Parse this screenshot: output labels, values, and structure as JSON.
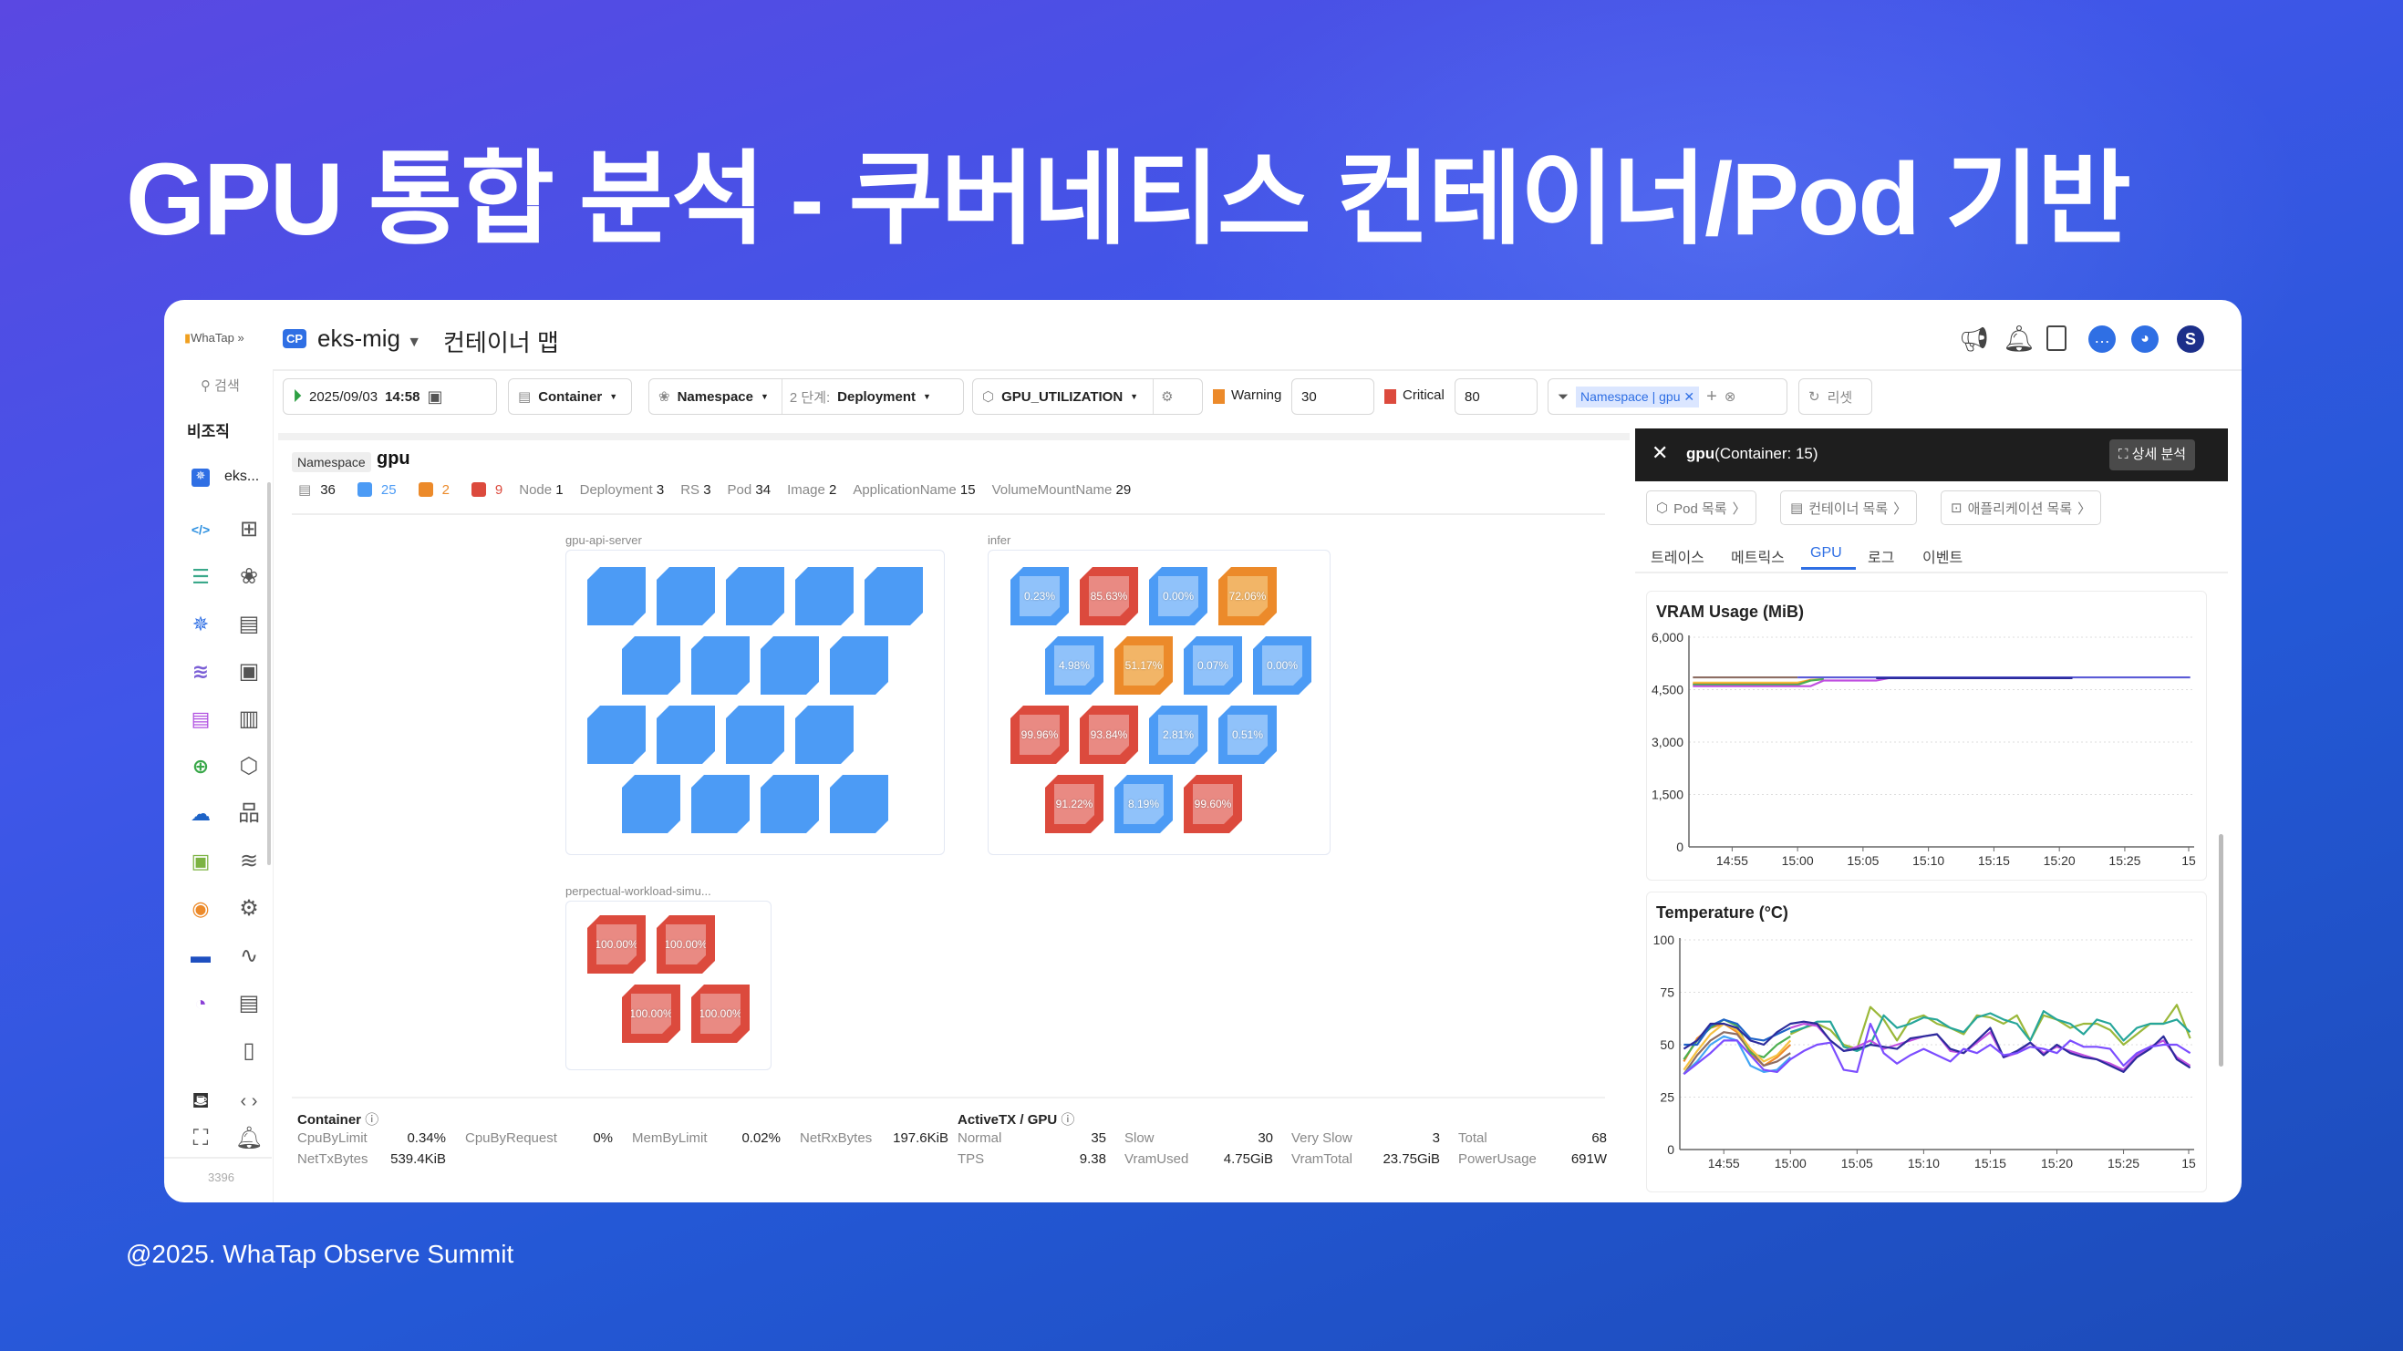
{
  "slide": {
    "title": "GPU 통합 분석 - 쿠버네티스 컨테이너/Pod 기반",
    "footer": "@2025. WhaTap Observe Summit"
  },
  "header": {
    "logo": "WhaTap",
    "project_badge": "CP",
    "project": "eks-mig",
    "page_title": "컨테이너 맵",
    "icons": [
      "megaphone-icon",
      "bell-icon",
      "info-panel-icon",
      "chat-icon",
      "bot-icon",
      "user-avatar-icon"
    ],
    "avatar_letter": "S"
  },
  "sidebar": {
    "search": "검색",
    "org": "비조직",
    "project": "eks...",
    "count": "3396",
    "icons_col1": [
      "code-icon",
      "server-icon",
      "kubernetes-icon",
      "database-icon",
      "log-icon",
      "network-icon",
      "cloud-icon",
      "browser-icon",
      "radio-icon",
      "chip-icon",
      "gauge-icon"
    ],
    "icons_col2": [
      "dashboard-icon",
      "cluster-icon",
      "list-icon",
      "gpu-icon",
      "memory-icon",
      "cube-icon",
      "topology-icon",
      "storage-icon",
      "settings-icon",
      "chart-icon",
      "logs-icon",
      "document-icon",
      "code-brackets-icon"
    ]
  },
  "toolbar": {
    "date": "2025/09/03",
    "time": "14:58",
    "object": "Container",
    "group1": "Namespace",
    "step_label": "2 단계:",
    "group2": "Deployment",
    "metric": "GPU_UTILIZATION",
    "warning_label": "Warning",
    "warning_value": "30",
    "critical_label": "Critical",
    "critical_value": "80",
    "filter_chip": "Namespace | gpu",
    "reset": "리셋"
  },
  "colors": {
    "normal": "#4c9bf5",
    "warning": "#ec8a2a",
    "critical": "#dc4a3d",
    "accent": "#2f6fe4"
  },
  "namespace": {
    "tag": "Namespace",
    "name": "gpu",
    "counts": {
      "containers": "36",
      "normal": "25",
      "warning": "2",
      "critical": "9"
    },
    "stats": [
      {
        "label": "Node",
        "value": "1"
      },
      {
        "label": "Deployment",
        "value": "3"
      },
      {
        "label": "RS",
        "value": "3"
      },
      {
        "label": "Pod",
        "value": "34"
      },
      {
        "label": "Image",
        "value": "2"
      },
      {
        "label": "ApplicationName",
        "value": "15"
      },
      {
        "label": "VolumeMountName",
        "value": "29"
      }
    ]
  },
  "groups": [
    {
      "name": "gpu-api-server",
      "rows": [
        [
          {
            "s": "normal"
          },
          {
            "s": "normal"
          },
          {
            "s": "normal"
          },
          {
            "s": "normal"
          },
          {
            "s": "normal"
          }
        ],
        [
          {
            "s": "normal"
          },
          {
            "s": "normal"
          },
          {
            "s": "normal"
          },
          {
            "s": "normal"
          }
        ],
        [
          {
            "s": "normal"
          },
          {
            "s": "normal"
          },
          {
            "s": "normal"
          },
          {
            "s": "normal"
          }
        ],
        [
          {
            "s": "normal"
          },
          {
            "s": "normal"
          },
          {
            "s": "normal"
          },
          {
            "s": "normal"
          }
        ]
      ]
    },
    {
      "name": "infer",
      "rows": [
        [
          {
            "s": "normal",
            "v": "0.23%"
          },
          {
            "s": "critical",
            "v": "85.63%"
          },
          {
            "s": "normal",
            "v": "0.00%"
          },
          {
            "s": "warning",
            "v": "72.06%"
          }
        ],
        [
          {
            "s": "normal",
            "v": "4.98%"
          },
          {
            "s": "warning",
            "v": "51.17%"
          },
          {
            "s": "normal",
            "v": "0.07%"
          },
          {
            "s": "normal",
            "v": "0.00%"
          }
        ],
        [
          {
            "s": "critical",
            "v": "99.96%"
          },
          {
            "s": "critical",
            "v": "93.84%"
          },
          {
            "s": "normal",
            "v": "2.81%"
          },
          {
            "s": "normal",
            "v": "0.51%"
          }
        ],
        [
          {
            "s": "critical",
            "v": "91.22%"
          },
          {
            "s": "normal",
            "v": "8.19%"
          },
          {
            "s": "critical",
            "v": "99.60%"
          }
        ]
      ]
    },
    {
      "name": "perpectual-workload-simu...",
      "rows": [
        [
          {
            "s": "critical",
            "v": "100.00%"
          },
          {
            "s": "critical",
            "v": "100.00%"
          }
        ],
        [
          {
            "s": "critical",
            "v": "100.00%"
          },
          {
            "s": "critical",
            "v": "100.00%"
          }
        ]
      ]
    }
  ],
  "summary": {
    "container_title": "Container",
    "gpu_title": "ActiveTX / GPU",
    "container_stats": [
      {
        "label": "CpuByLimit",
        "value": "0.34%"
      },
      {
        "label": "CpuByRequest",
        "value": "0%"
      },
      {
        "label": "MemByLimit",
        "value": "0.02%"
      },
      {
        "label": "NetRxBytes",
        "value": "197.6KiB"
      },
      {
        "label": "NetTxBytes",
        "value": "539.4KiB"
      }
    ],
    "gpu_stats": [
      {
        "label": "Normal",
        "value": "35"
      },
      {
        "label": "Slow",
        "value": "30"
      },
      {
        "label": "Very Slow",
        "value": "3"
      },
      {
        "label": "Total",
        "value": "68"
      },
      {
        "label": "TPS",
        "value": "9.38"
      },
      {
        "label": "VramUsed",
        "value": "4.75GiB"
      },
      {
        "label": "VramTotal",
        "value": "23.75GiB"
      },
      {
        "label": "PowerUsage",
        "value": "691W"
      }
    ]
  },
  "panel": {
    "title_bold": "gpu",
    "title_rest": "(Container: 15)",
    "detail_button": "상세 분석",
    "buttons": [
      "Pod 목록",
      "컨테이너 목록",
      "애플리케이션 목록"
    ],
    "tabs": [
      "트레이스",
      "메트릭스",
      "GPU",
      "로그",
      "이벤트"
    ],
    "active_tab": "GPU"
  },
  "chart_data": [
    {
      "type": "line",
      "title": "VRAM Usage (MiB)",
      "ylim": [
        0,
        6000
      ],
      "yticks": [
        "0",
        "1,500",
        "3,000",
        "4,500",
        "6,000"
      ],
      "xticks": [
        "14:55",
        "15:00",
        "15:05",
        "15:10",
        "15:15",
        "15:20",
        "15:25",
        "15"
      ],
      "grid": true,
      "series": [
        {
          "color": "#8d6e63",
          "x": [
            "14:52",
            "15:00"
          ],
          "y": [
            4850,
            4850
          ]
        },
        {
          "color": "#f5c242",
          "x": [
            "14:52",
            "15:00",
            "15:01",
            "15:02"
          ],
          "y": [
            4700,
            4700,
            4780,
            4800
          ]
        },
        {
          "color": "#f08a2a",
          "x": [
            "14:52",
            "15:00",
            "15:01"
          ],
          "y": [
            4660,
            4660,
            4780
          ]
        },
        {
          "color": "#4caf50",
          "x": [
            "14:52",
            "15:00",
            "15:01",
            "15:02"
          ],
          "y": [
            4640,
            4640,
            4760,
            4800
          ]
        },
        {
          "color": "#c04fe0",
          "x": [
            "14:52",
            "15:01",
            "15:02",
            "15:06",
            "15:07",
            "15:21"
          ],
          "y": [
            4600,
            4600,
            4760,
            4760,
            4830,
            4830
          ]
        },
        {
          "color": "#5b5bd6",
          "x": [
            "15:00",
            "15:30"
          ],
          "y": [
            4850,
            4850
          ]
        },
        {
          "color": "#2c2c9c",
          "x": [
            "15:06",
            "15:21"
          ],
          "y": [
            4830,
            4830
          ]
        }
      ]
    },
    {
      "type": "line",
      "title": "Temperature (°C)",
      "ylim": [
        0,
        100
      ],
      "yticks": [
        "0",
        "25",
        "50",
        "75",
        "100"
      ],
      "xticks": [
        "14:55",
        "15:00",
        "15:05",
        "15:10",
        "15:15",
        "15:20",
        "15:25",
        "15"
      ],
      "grid": true,
      "series": [
        {
          "color": "#f08a2a",
          "x": [
            "14:52",
            "14:53",
            "14:54",
            "14:55",
            "14:56",
            "14:57",
            "14:58",
            "14:59",
            "15:00"
          ],
          "y": [
            42,
            53,
            58,
            60,
            56,
            46,
            40,
            44,
            50
          ]
        },
        {
          "color": "#8d6e63",
          "x": [
            "14:52",
            "14:53",
            "14:54",
            "14:55",
            "14:56",
            "14:57",
            "14:58",
            "14:59",
            "15:00"
          ],
          "y": [
            36,
            45,
            52,
            56,
            55,
            47,
            40,
            42,
            46
          ]
        },
        {
          "color": "#4caf50",
          "x": [
            "14:52",
            "14:53",
            "14:54",
            "14:55",
            "14:56",
            "14:57",
            "14:58",
            "14:59",
            "15:00"
          ],
          "y": [
            43,
            52,
            58,
            62,
            59,
            46,
            44,
            50,
            54
          ]
        },
        {
          "color": "#f5c242",
          "x": [
            "14:52",
            "14:53",
            "14:54",
            "14:55",
            "14:56",
            "14:57",
            "14:58",
            "14:59",
            "15:00"
          ],
          "y": [
            38,
            47,
            55,
            60,
            57,
            48,
            42,
            45,
            52
          ]
        },
        {
          "color": "#42a5f5",
          "x": [
            "14:52",
            "14:53",
            "14:54",
            "14:55",
            "14:56",
            "14:57",
            "14:58",
            "14:59",
            "15:00"
          ],
          "y": [
            36,
            42,
            50,
            54,
            52,
            40,
            37,
            38,
            44
          ]
        },
        {
          "color": "#1e63c7",
          "x": [
            "14:52",
            "14:53",
            "14:54",
            "14:55",
            "14:56",
            "14:57",
            "14:58",
            "14:59",
            "15:00"
          ],
          "y": [
            50,
            50,
            59,
            62,
            60,
            53,
            52,
            55,
            58
          ]
        },
        {
          "color": "#9bb83a",
          "x": [
            "15:00",
            "15:01",
            "15:02",
            "15:03",
            "15:04",
            "15:05",
            "15:06",
            "15:07",
            "15:08",
            "15:09",
            "15:10",
            "15:11",
            "15:12",
            "15:13",
            "15:14",
            "15:15",
            "15:16",
            "15:17",
            "15:18",
            "15:19",
            "15:20",
            "15:21",
            "15:22",
            "15:23",
            "15:24",
            "15:25",
            "15:26",
            "15:27",
            "15:28",
            "15:29",
            "15:30"
          ],
          "y": [
            55,
            58,
            60,
            57,
            50,
            48,
            68,
            62,
            52,
            62,
            64,
            60,
            58,
            55,
            64,
            63,
            60,
            64,
            52,
            64,
            62,
            58,
            60,
            60,
            57,
            50,
            55,
            60,
            60,
            69,
            53
          ]
        },
        {
          "color": "#26a69a",
          "x": [
            "15:00",
            "15:01",
            "15:02",
            "15:03",
            "15:04",
            "15:05",
            "15:06",
            "15:07",
            "15:08",
            "15:09",
            "15:10",
            "15:11",
            "15:12",
            "15:13",
            "15:14",
            "15:15",
            "15:16",
            "15:17",
            "15:18",
            "15:19",
            "15:20",
            "15:21",
            "15:22",
            "15:23",
            "15:24",
            "15:25",
            "15:26",
            "15:27",
            "15:28",
            "15:29",
            "15:30"
          ],
          "y": [
            56,
            58,
            61,
            61,
            49,
            47,
            50,
            64,
            58,
            60,
            63,
            62,
            58,
            56,
            63,
            65,
            62,
            60,
            52,
            66,
            62,
            60,
            55,
            62,
            60,
            52,
            58,
            60,
            60,
            62,
            56
          ]
        },
        {
          "color": "#c04fe0",
          "x": [
            "15:00",
            "15:01",
            "15:02",
            "15:03",
            "15:04",
            "15:05",
            "15:06",
            "15:07",
            "15:08",
            "15:09",
            "15:10",
            "15:11",
            "15:12",
            "15:13",
            "15:14",
            "15:15",
            "15:16",
            "15:17",
            "15:18",
            "15:19",
            "15:20",
            "15:21",
            "15:22",
            "15:23",
            "15:24",
            "15:25",
            "15:26",
            "15:27",
            "15:28",
            "15:29",
            "15:30"
          ],
          "y": [
            58,
            60,
            59,
            52,
            47,
            49,
            52,
            48,
            50,
            52,
            54,
            55,
            47,
            46,
            51,
            56,
            44,
            46,
            51,
            46,
            49,
            47,
            45,
            43,
            41,
            38,
            45,
            49,
            52,
            44,
            40
          ]
        },
        {
          "color": "#2c2c9c",
          "x": [
            "14:52",
            "14:53",
            "14:54",
            "14:55",
            "14:56",
            "14:57",
            "14:58",
            "14:59",
            "15:00",
            "15:01",
            "15:02",
            "15:03",
            "15:04",
            "15:05",
            "15:06",
            "15:07",
            "15:08",
            "15:09",
            "15:10",
            "15:11",
            "15:12",
            "15:13",
            "15:14",
            "15:15",
            "15:16",
            "15:17",
            "15:18",
            "15:19",
            "15:20",
            "15:21",
            "15:22",
            "15:23",
            "15:24",
            "15:25",
            "15:26",
            "15:27",
            "15:28",
            "15:29",
            "15:30"
          ],
          "y": [
            48,
            52,
            60,
            60,
            58,
            52,
            50,
            56,
            60,
            61,
            60,
            52,
            47,
            48,
            50,
            49,
            48,
            53,
            54,
            55,
            48,
            46,
            52,
            58,
            44,
            47,
            51,
            45,
            50,
            46,
            44,
            43,
            40,
            37,
            44,
            48,
            54,
            43,
            39
          ]
        },
        {
          "color": "#7c4dff",
          "x": [
            "14:52",
            "14:53",
            "14:54",
            "14:55",
            "14:56",
            "14:57",
            "14:58",
            "14:59",
            "15:00",
            "15:01",
            "15:02",
            "15:03",
            "15:04",
            "15:05",
            "15:06",
            "15:07",
            "15:08",
            "15:09",
            "15:10",
            "15:11",
            "15:12",
            "15:13",
            "15:14",
            "15:15",
            "15:16",
            "15:17",
            "15:18",
            "15:19",
            "15:20",
            "15:21",
            "15:22",
            "15:23",
            "15:24",
            "15:25",
            "15:26",
            "15:27",
            "15:28",
            "15:29",
            "15:30"
          ],
          "y": [
            36,
            41,
            46,
            52,
            52,
            45,
            38,
            37,
            43,
            47,
            50,
            51,
            38,
            37,
            60,
            46,
            41,
            45,
            48,
            45,
            42,
            48,
            46,
            50,
            45,
            46,
            49,
            48,
            46,
            52,
            49,
            49,
            48,
            40,
            46,
            49,
            50,
            50,
            46
          ]
        }
      ]
    }
  ]
}
